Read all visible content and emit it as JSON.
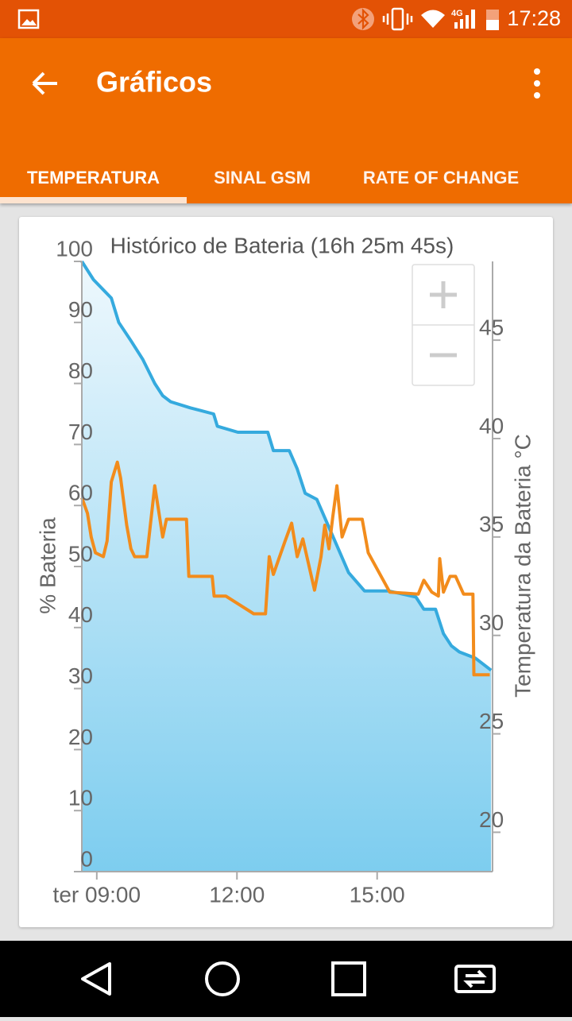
{
  "status_bar": {
    "network": "4G",
    "time": "17:28"
  },
  "app_bar": {
    "title": "Gráficos"
  },
  "tabs": [
    {
      "label": "TEMPERATURA",
      "selected": true
    },
    {
      "label": "SINAL GSM",
      "selected": false
    },
    {
      "label": "RATE OF CHANGE",
      "selected": false
    }
  ],
  "chart_data": {
    "type": "line",
    "title": "Histórico de Bateria (16h 25m 45s)",
    "y_label": "% Bateria",
    "y2_label": "Temperatura da Bateria °C",
    "xlim": [
      8.68,
      17.47
    ],
    "xticks": [
      {
        "value": 9,
        "label": "ter 09:00"
      },
      {
        "value": 12,
        "label": "12:00"
      },
      {
        "value": 15,
        "label": "15:00"
      }
    ],
    "ylim": [
      0,
      100
    ],
    "yticks": [
      0,
      10,
      20,
      30,
      40,
      50,
      60,
      70,
      80,
      90,
      100
    ],
    "y2lim": [
      18,
      49
    ],
    "y2ticks": [
      20,
      25,
      30,
      35,
      40,
      45
    ],
    "grid": false,
    "series": [
      {
        "color": "#35aade",
        "fill": true,
        "x": [
          8.68,
          8.93,
          9.31,
          9.47,
          9.73,
          9.98,
          10.24,
          10.41,
          10.58,
          11.0,
          11.5,
          11.58,
          12.02,
          12.53,
          12.66,
          12.78,
          13.12,
          13.29,
          13.46,
          13.71,
          13.88,
          14.05,
          14.22,
          14.39,
          14.73,
          15.24,
          15.83,
          16.0,
          16.25,
          16.42,
          16.59,
          16.76,
          17.1,
          17.44
        ],
        "values": [
          100,
          97,
          94,
          90,
          87,
          84,
          80,
          78,
          77,
          76,
          75,
          73,
          72,
          72,
          72,
          69,
          69,
          66,
          62,
          61,
          58,
          55,
          52,
          49,
          46,
          46,
          45,
          43,
          43,
          39,
          37,
          36,
          35,
          33
        ]
      },
      {
        "color": "#f28c1c",
        "fill": false,
        "axis": "y2",
        "x": [
          8.68,
          8.8,
          8.88,
          8.97,
          9.14,
          9.22,
          9.31,
          9.44,
          9.51,
          9.64,
          9.73,
          9.81,
          10.07,
          10.24,
          10.41,
          10.49,
          10.92,
          10.97,
          11.47,
          11.51,
          11.76,
          12.36,
          12.61,
          12.69,
          12.78,
          13.03,
          13.17,
          13.29,
          13.41,
          13.66,
          13.8,
          13.88,
          13.97,
          14.05,
          14.14,
          14.25,
          14.39,
          14.68,
          14.81,
          15.27,
          15.88,
          16.0,
          16.17,
          16.31,
          16.34,
          16.42,
          16.56,
          16.68,
          16.85,
          17.05,
          17.07,
          17.41
        ],
        "values": [
          37.0,
          36.2,
          35.0,
          34.2,
          34.0,
          34.8,
          37.8,
          38.8,
          38.0,
          35.6,
          34.4,
          34.0,
          34.0,
          37.6,
          35.0,
          35.9,
          35.9,
          33.0,
          33.0,
          32.0,
          32.0,
          31.1,
          31.1,
          34.0,
          33.1,
          34.8,
          35.7,
          34.0,
          34.9,
          32.3,
          34.0,
          35.6,
          34.4,
          36.0,
          37.6,
          35.0,
          35.9,
          35.9,
          34.2,
          32.2,
          32.1,
          32.8,
          32.2,
          32.0,
          33.9,
          32.2,
          33.0,
          33.0,
          32.1,
          32.1,
          28.0,
          28.0
        ]
      }
    ]
  }
}
